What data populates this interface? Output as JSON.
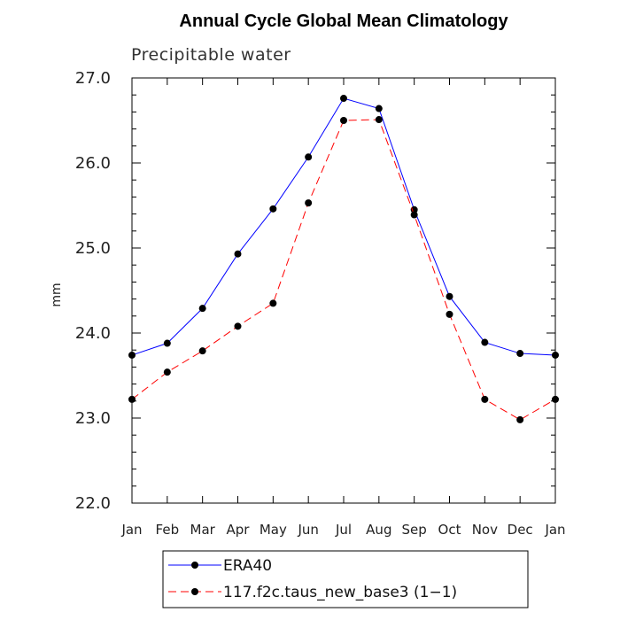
{
  "chart_data": {
    "type": "line",
    "title": "Annual Cycle Global Mean Climatology",
    "subtitle": "Precipitable water",
    "xlabel": "",
    "ylabel": "mm",
    "categories": [
      "Jan",
      "Feb",
      "Mar",
      "Apr",
      "May",
      "Jun",
      "Jul",
      "Aug",
      "Sep",
      "Oct",
      "Nov",
      "Dec",
      "Jan"
    ],
    "ylim": [
      22.0,
      27.0
    ],
    "yticks": [
      "22.0",
      "23.0",
      "24.0",
      "25.0",
      "26.0",
      "27.0"
    ],
    "grid": false,
    "legend_position": "bottom",
    "series": [
      {
        "name": "ERA40",
        "color": "#0000ff",
        "dash": "solid",
        "values": [
          23.74,
          23.88,
          24.29,
          24.93,
          25.46,
          26.07,
          26.76,
          26.64,
          25.45,
          24.43,
          23.89,
          23.76,
          23.74
        ]
      },
      {
        "name": "117.f2c.taus_new_base3 (1−1)",
        "color": "#ff0000",
        "dash": "dashed",
        "values": [
          23.22,
          23.54,
          23.79,
          24.08,
          24.35,
          25.53,
          26.5,
          26.51,
          25.39,
          24.22,
          23.22,
          22.98,
          23.22
        ]
      }
    ]
  }
}
